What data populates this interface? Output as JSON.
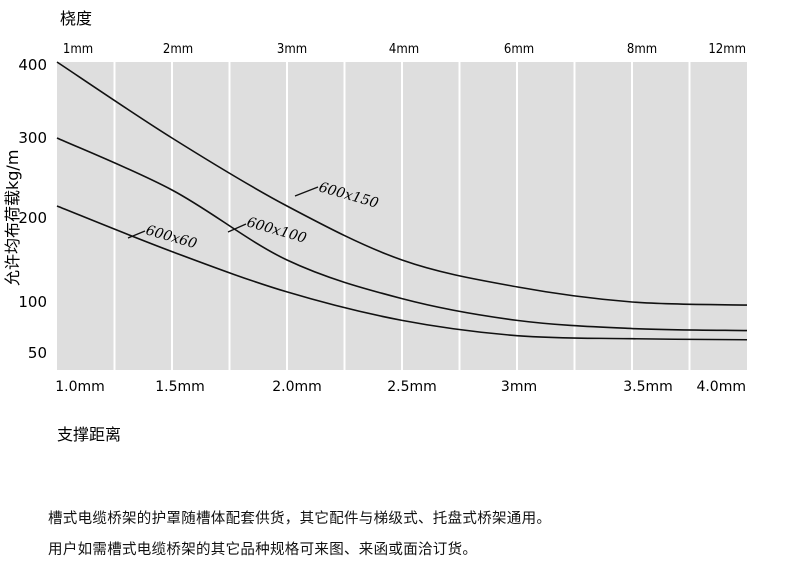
{
  "chart_data": {
    "type": "line",
    "top_axis_title": "桡度",
    "ylabel": "允许均布荷载kg/m",
    "xlabel": "支撑距离",
    "x_ticks": [
      "1.0mm",
      "1.5mm",
      "2.0mm",
      "2.5mm",
      "3mm",
      "3.5mm",
      "4.0mm"
    ],
    "top_ticks": [
      "1mm",
      "2mm",
      "3mm",
      "4mm",
      "6mm",
      "8mm",
      "12mm"
    ],
    "y_ticks": [
      "400",
      "300",
      "200",
      "100",
      "50"
    ],
    "ylim": [
      50,
      400
    ],
    "grid": true,
    "x": [
      1.0,
      1.5,
      2.0,
      2.5,
      3.0,
      3.5,
      4.0
    ],
    "series": [
      {
        "name": "600x150",
        "values": [
          400,
          300,
          215,
          150,
          118,
          100,
          97
        ]
      },
      {
        "name": "600x100",
        "values": [
          300,
          235,
          150,
          104,
          82,
          74,
          72
        ]
      },
      {
        "name": "600x60",
        "values": [
          215,
          160,
          112,
          82,
          67,
          64,
          63
        ]
      }
    ]
  },
  "notes": [
    "槽式电缆桥架的护罩随槽体配套供货，其它配件与梯级式、托盘式桥架通用。",
    "用户如需槽式电缆桥架的其它品种规格可来图、来函或面洽订货。"
  ]
}
